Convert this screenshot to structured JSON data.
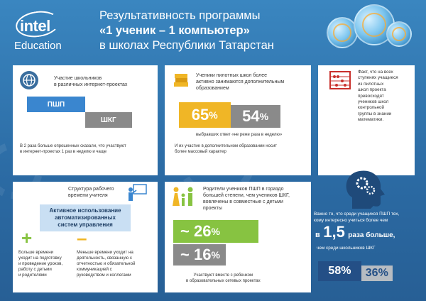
{
  "logo": {
    "word": "intel",
    "sub": "Education"
  },
  "title": {
    "line1": "Результативность программы",
    "line2": "«1 ученик – 1 компьютер»",
    "line3": "в школах Республики Татарстан"
  },
  "card1": {
    "heading1": "Участие школьников",
    "heading2": "в различных интернет-проектах",
    "bar1": "ПШП",
    "bar2": "ШКГ",
    "foot1": "В 2 раза больше опрошенных сказали, что участвуют",
    "foot2": "в интернет-проектах 1 раз в неделю и чаще"
  },
  "card2": {
    "heading1": "Ученики пилотных школ более",
    "heading2": "активно занимаются дополнительным",
    "heading3": "образованием",
    "val1": "65",
    "val2": "54",
    "pct": "%",
    "sub": "выбравших ответ «не реже раза в неделю»",
    "foot1": "И их участие в дополнительном образовании носит",
    "foot2": "более массовый характер"
  },
  "card3": {
    "l1": "Факт, что на всех",
    "l2": "ступенях учащиеся",
    "l3": "из пилотных",
    "l4": "школ проекта",
    "l5": "превосходят",
    "l6": "учеников школ",
    "l7": "контрольной",
    "l8": "группы в знании",
    "l9": "математики."
  },
  "card4": {
    "heading1": "Структура рабочего",
    "heading2": "времени учителя",
    "box1": "Активное использование",
    "box2": "автоматизированных",
    "box3": "систем управления",
    "plus": "+",
    "minus": "–",
    "left1": "Больше времени",
    "left2": "уходит на подготовку",
    "left3": "и проведение уроков,",
    "left4": "работу с  детьми",
    "left5": "и  родителями",
    "right1": "Меньше времени уходит на",
    "right2": "деятельность, связанную  с",
    "right3": "отчетностью  и  обязательной",
    "right4": "коммуникацией  с",
    "right5": "руководством  и  коллегами"
  },
  "card5": {
    "heading1": "Родители учеников ПШП в гораздо",
    "heading2": "большей степени, чем учеников ШКГ,",
    "heading3": "вовлечены в совместные с детьми",
    "heading4": "проекты",
    "val1": "~ 26",
    "val2": "~ 16",
    "pct": "%",
    "foot1": "Участвуют вместе с ребенком",
    "foot2": "в образовательных сетевых проектах"
  },
  "card6": {
    "l1": "Важно то, что среди учащихся ПШП тех,",
    "l2": "кому интересно учиться более чем",
    "pre": "в",
    "big": "1,5",
    "post": "раза больше,",
    "l3": "чем среди школьников ШКГ",
    "val1": "58%",
    "val2": "36%"
  },
  "progress": {
    "card1_pshp": 1.0,
    "card1_shkg": 0.5,
    "card2_a": 65,
    "card2_b": 54,
    "card5_a": 26,
    "card5_b": 16,
    "card6_a": 58,
    "card6_b": 36
  },
  "colors": {
    "blue": "#3a86cf",
    "gray": "#8a8a8a",
    "yellow": "#f0b626",
    "green": "#87c341",
    "darkblue": "#244f86",
    "red": "#c9302c"
  }
}
